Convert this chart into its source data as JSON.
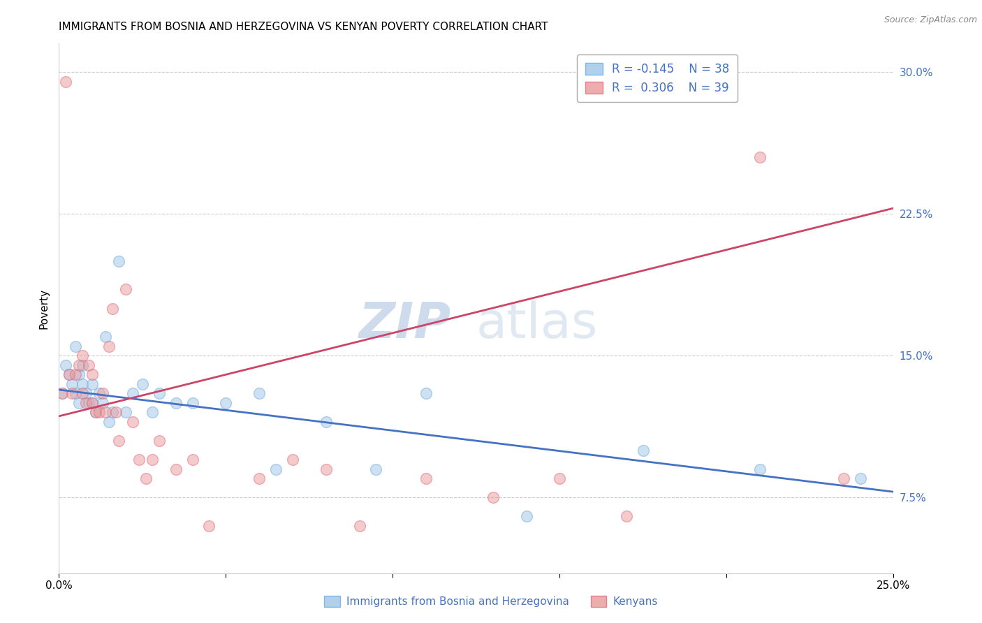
{
  "title": "IMMIGRANTS FROM BOSNIA AND HERZEGOVINA VS KENYAN POVERTY CORRELATION CHART",
  "source": "Source: ZipAtlas.com",
  "ylabel": "Poverty",
  "xlim": [
    0.0,
    0.25
  ],
  "ylim": [
    0.035,
    0.315
  ],
  "yticks": [
    0.075,
    0.15,
    0.225,
    0.3
  ],
  "ytick_labels": [
    "7.5%",
    "15.0%",
    "22.5%",
    "30.0%"
  ],
  "xticks": [
    0.0,
    0.05,
    0.1,
    0.15,
    0.2,
    0.25
  ],
  "xtick_labels": [
    "0.0%",
    "",
    "",
    "",
    "",
    "25.0%"
  ],
  "legend_r_blue": "R = -0.145",
  "legend_n_blue": "N = 38",
  "legend_r_pink": "R =  0.306",
  "legend_n_pink": "N = 39",
  "blue_color": "#9fc5e8",
  "pink_color": "#ea9999",
  "blue_edge_color": "#6fa8dc",
  "pink_edge_color": "#e06880",
  "blue_line_color": "#4472c4",
  "pink_line_color": "#cc4466",
  "watermark_zip": "ZIP",
  "watermark_atlas": "atlas",
  "grid_color": "#cccccc",
  "background_color": "#ffffff",
  "title_fontsize": 11,
  "axis_label_fontsize": 11,
  "tick_fontsize": 11,
  "legend_fontsize": 12,
  "watermark_fontsize_zip": 52,
  "watermark_fontsize_atlas": 52,
  "scatter_size": 130,
  "scatter_alpha": 0.5,
  "scatter_linewidth": 1.0,
  "blue_scatter_x": [
    0.001,
    0.002,
    0.003,
    0.004,
    0.005,
    0.005,
    0.006,
    0.006,
    0.007,
    0.007,
    0.008,
    0.009,
    0.01,
    0.01,
    0.011,
    0.012,
    0.013,
    0.014,
    0.015,
    0.016,
    0.018,
    0.02,
    0.022,
    0.025,
    0.028,
    0.03,
    0.035,
    0.04,
    0.05,
    0.06,
    0.065,
    0.08,
    0.095,
    0.11,
    0.14,
    0.175,
    0.21,
    0.24
  ],
  "blue_scatter_y": [
    0.13,
    0.145,
    0.14,
    0.135,
    0.13,
    0.155,
    0.125,
    0.14,
    0.145,
    0.135,
    0.13,
    0.125,
    0.125,
    0.135,
    0.12,
    0.13,
    0.125,
    0.16,
    0.115,
    0.12,
    0.2,
    0.12,
    0.13,
    0.135,
    0.12,
    0.13,
    0.125,
    0.125,
    0.125,
    0.13,
    0.09,
    0.115,
    0.09,
    0.13,
    0.065,
    0.1,
    0.09,
    0.085
  ],
  "pink_scatter_x": [
    0.001,
    0.002,
    0.003,
    0.004,
    0.005,
    0.006,
    0.007,
    0.007,
    0.008,
    0.009,
    0.01,
    0.01,
    0.011,
    0.012,
    0.013,
    0.014,
    0.015,
    0.016,
    0.017,
    0.018,
    0.02,
    0.022,
    0.024,
    0.026,
    0.028,
    0.03,
    0.035,
    0.04,
    0.045,
    0.06,
    0.07,
    0.08,
    0.09,
    0.11,
    0.13,
    0.15,
    0.17,
    0.21,
    0.235
  ],
  "pink_scatter_y": [
    0.13,
    0.295,
    0.14,
    0.13,
    0.14,
    0.145,
    0.13,
    0.15,
    0.125,
    0.145,
    0.14,
    0.125,
    0.12,
    0.12,
    0.13,
    0.12,
    0.155,
    0.175,
    0.12,
    0.105,
    0.185,
    0.115,
    0.095,
    0.085,
    0.095,
    0.105,
    0.09,
    0.095,
    0.06,
    0.085,
    0.095,
    0.09,
    0.06,
    0.085,
    0.075,
    0.085,
    0.065,
    0.255,
    0.085
  ],
  "blue_trend_y_start": 0.132,
  "blue_trend_y_end": 0.078,
  "pink_trend_y_start": 0.118,
  "pink_trend_y_end": 0.228
}
